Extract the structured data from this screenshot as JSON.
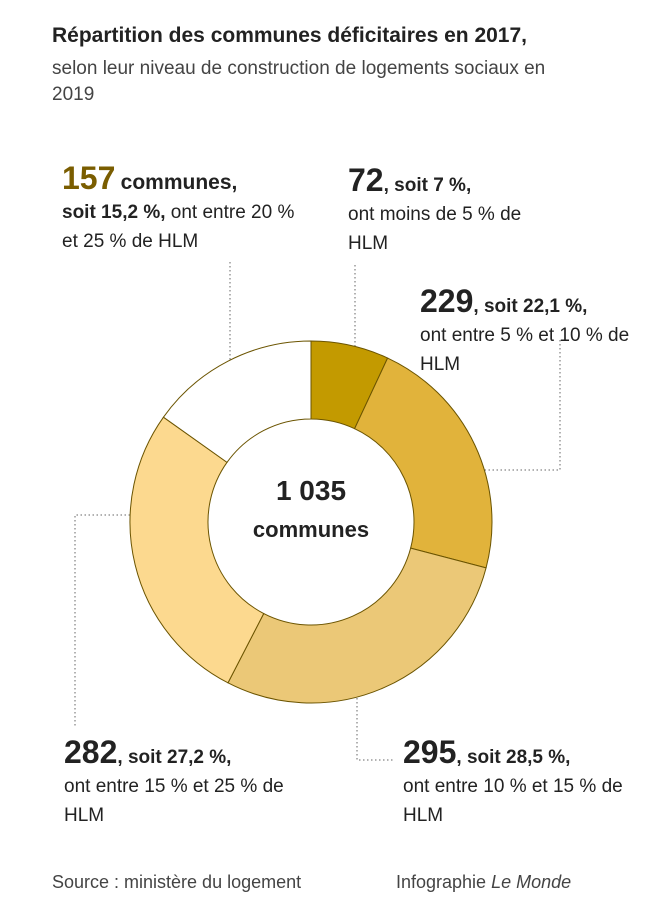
{
  "chart_data": {
    "type": "donut",
    "title": "Répartition des communes déficitaires en 2017,",
    "subtitle": "selon leur niveau de construction de logements sociaux en 2019",
    "values": [
      72,
      229,
      295,
      282,
      157
    ],
    "share_labels": [
      ", soit 7 %,",
      ", soit 22,1 %,",
      ", soit 28,5 %,",
      ", soit 27,2 %,",
      "soit 15,2 %,"
    ],
    "categories": [
      "ont moins de 5 % de HLM",
      "ont entre 5 % et 10 % de HLM",
      "ont entre 10 % et 15 % de HLM",
      "ont entre 15 % et 25 % de HLM",
      "ont entre 20 % et 25 % de HLM"
    ],
    "value_unit": "communes,",
    "colors": [
      "#c39a00",
      "#e1b33b",
      "#ebc877",
      "#fcd98f",
      "#ffffff"
    ],
    "total": {
      "value": 1035,
      "label": "1 035"
    },
    "total_unit": "communes",
    "source": "Source : ministère du logement",
    "credit": "Infographie",
    "credit_brand": "Le Monde"
  }
}
